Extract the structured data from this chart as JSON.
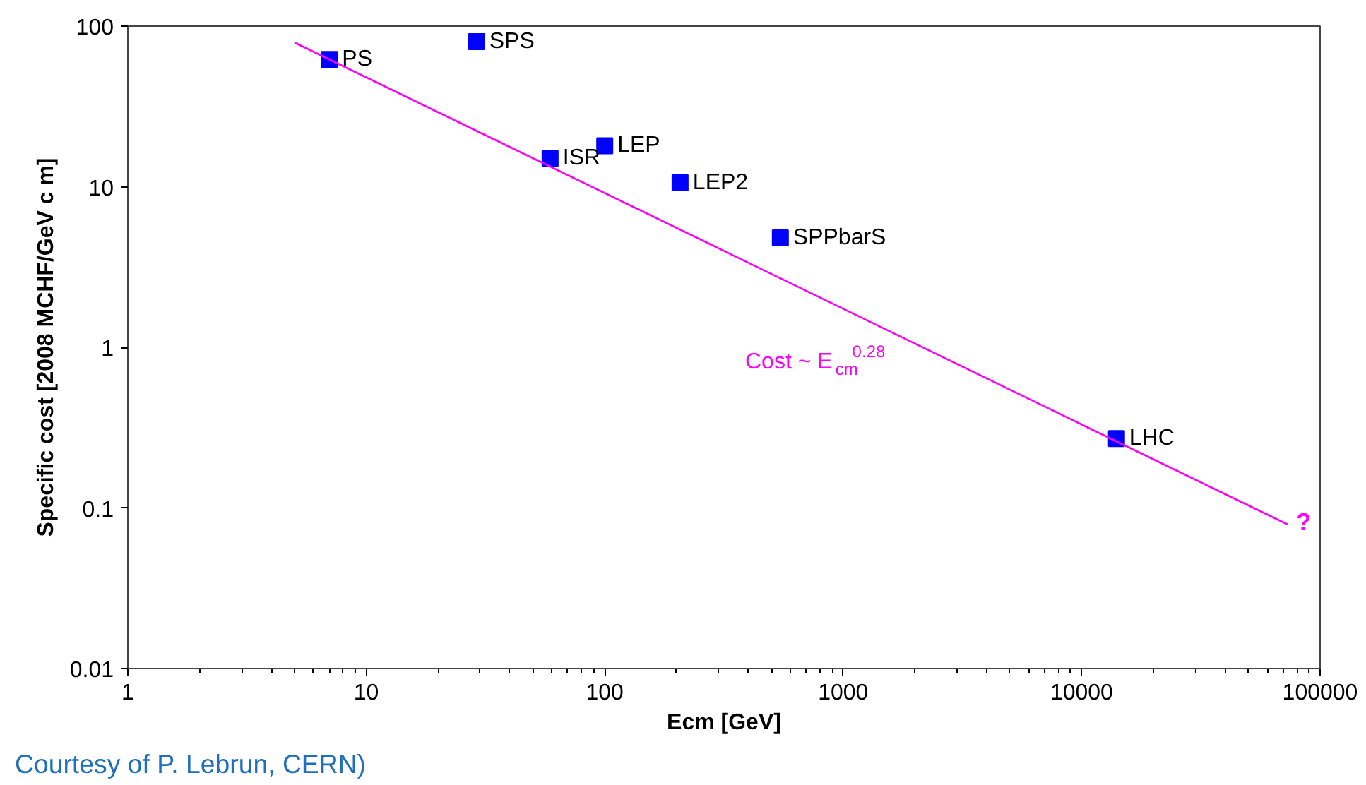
{
  "chart_data": {
    "type": "scatter",
    "log": "xy",
    "xlabel": "Ecm [GeV]",
    "ylabel": "Specific cost [2008 MCHF/GeV c m]",
    "xlim": [
      1,
      100000
    ],
    "ylim": [
      0.01,
      100
    ],
    "xticks": [
      1,
      10,
      100,
      1000,
      10000,
      100000
    ],
    "yticks": [
      0.01,
      0.1,
      1,
      10,
      100
    ],
    "grid": false,
    "series": [
      {
        "name": "PS",
        "color": "#0000ff",
        "marker": "square",
        "x": [
          7
        ],
        "values": [
          62
        ]
      },
      {
        "name": "SPS",
        "color": "#0000ff",
        "marker": "square",
        "x": [
          29
        ],
        "values": [
          80
        ]
      },
      {
        "name": "ISR",
        "color": "#0000ff",
        "marker": "square",
        "x": [
          59
        ],
        "values": [
          15
        ]
      },
      {
        "name": "LEP",
        "color": "#0000ff",
        "marker": "square",
        "x": [
          100
        ],
        "values": [
          18
        ]
      },
      {
        "name": "LEP2",
        "color": "#0000ff",
        "marker": "square",
        "x": [
          207
        ],
        "values": [
          10.6
        ]
      },
      {
        "name": "SPPbarS",
        "color": "#0000ff",
        "marker": "square",
        "x": [
          545
        ],
        "values": [
          4.8
        ]
      },
      {
        "name": "LHC",
        "color": "#0000ff",
        "marker": "square",
        "x": [
          14000
        ],
        "values": [
          0.27
        ]
      },
      {
        "type": "line",
        "color": "#ff00ff",
        "x": [
          5,
          73000
        ],
        "values": [
          79,
          0.079
        ]
      }
    ],
    "annotations": [
      "Cost ~ E$_{cm}$$^{0.28}$",
      "?",
      "Courtesy of P. Lebrun, CERN)"
    ]
  }
}
